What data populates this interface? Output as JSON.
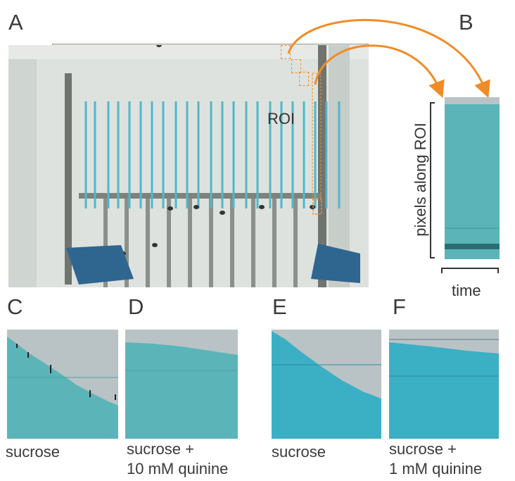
{
  "panels": {
    "a": {
      "letter": "A",
      "roi_label": "ROI"
    },
    "b": {
      "letter": "B",
      "y_axis_label": "pixels along ROI",
      "x_axis_label": "time"
    },
    "c": {
      "letter": "C",
      "caption": "sucrose"
    },
    "d": {
      "letter": "D",
      "caption_line1": "sucrose +",
      "caption_line2": "10 mM quinine"
    },
    "e": {
      "letter": "E",
      "caption": "sucrose"
    },
    "f": {
      "letter": "F",
      "caption_line1": "sucrose +",
      "caption_line2": "1 mM quinine"
    }
  },
  "colors": {
    "capillary": "#4fb8c9",
    "kymo_teal": "#5bb5b8",
    "kymo_grey": "#b9c3c6",
    "arrow_orange": "#f08c28",
    "frame_dark": "#6f746f"
  }
}
